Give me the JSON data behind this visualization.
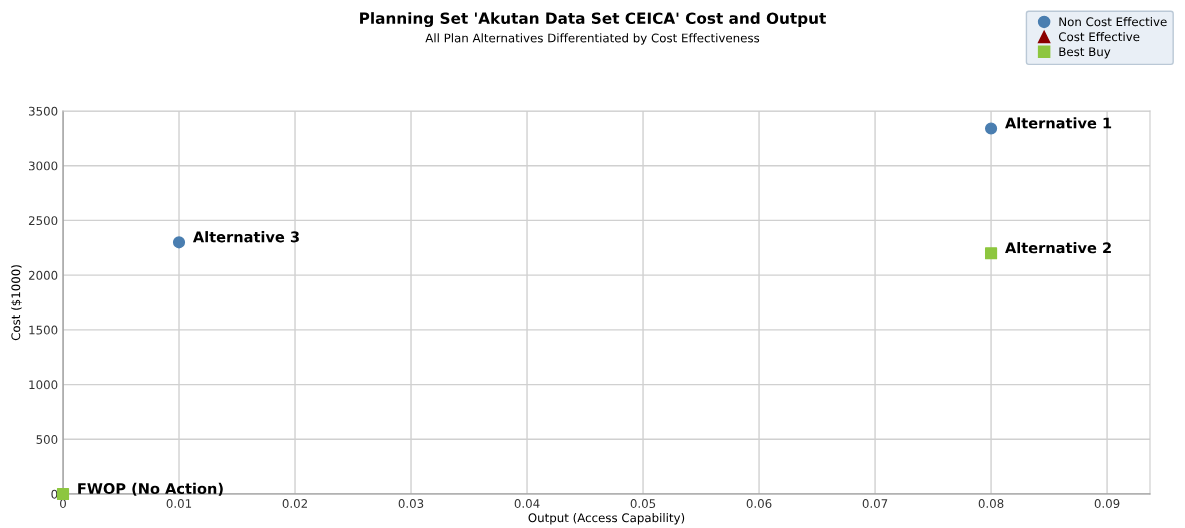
{
  "chart_data": {
    "type": "scatter",
    "title": "Planning Set 'Akutan Data Set CEICA' Cost and Output",
    "subtitle": "All Plan Alternatives Differentiated by Cost Effectiveness",
    "xlabel": "Output (Access Capability)",
    "ylabel": "Cost ($1000)",
    "series": [
      {
        "name": "Non Cost Effective",
        "color": "#4a7eb0",
        "marker": "circle",
        "x": [
          0.08,
          0.01
        ],
        "values": [
          3340,
          2300
        ]
      },
      {
        "name": "Cost Effective",
        "color": "#8b0000",
        "marker": "triangle"
      },
      {
        "name": "Best Buy",
        "color": "#8dc63f",
        "marker": "square",
        "x": [
          0.08,
          0
        ],
        "values": [
          2200,
          0
        ]
      }
    ],
    "annotations": [
      {
        "text": "Alternative 1",
        "x": 0.08,
        "y": 3340
      },
      {
        "text": "Alternative 2",
        "x": 0.08,
        "y": 2200
      },
      {
        "text": "Alternative 3",
        "x": 0.01,
        "y": 2300
      },
      {
        "text": "FWOP (No Action)",
        "x": 0,
        "y": 0
      }
    ],
    "xlim": [
      0,
      0.0937
    ],
    "xticks": [
      0,
      0.01,
      0.02,
      0.03,
      0.04,
      0.05,
      0.06,
      0.07,
      0.08,
      0.09
    ],
    "ylim": [
      0,
      3500
    ],
    "yticks": [
      0,
      500,
      1000,
      1500,
      2000,
      2500,
      3000,
      3500
    ],
    "grid": true,
    "legend": "top right"
  }
}
